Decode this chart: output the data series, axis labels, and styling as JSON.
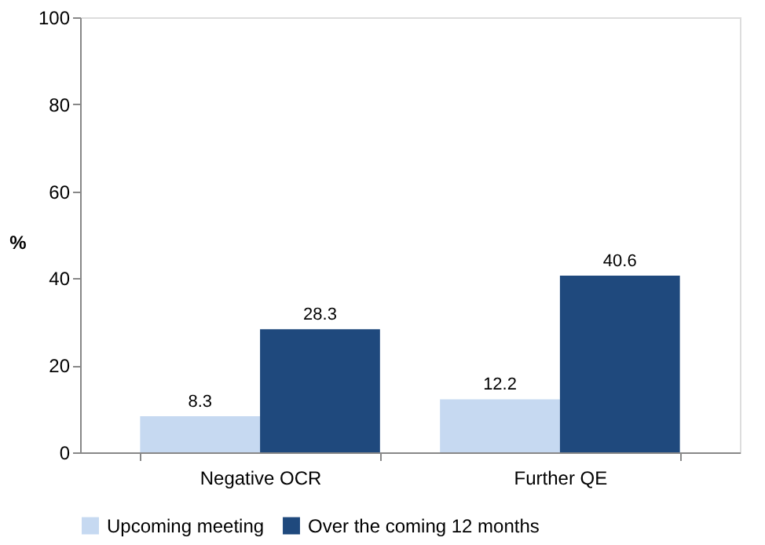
{
  "chart_data": {
    "type": "bar",
    "ylabel": "%",
    "categories": [
      "Negative OCR",
      "Further QE"
    ],
    "series": [
      {
        "name": "Upcoming meeting",
        "color": "#c6d9f1",
        "values": [
          8.3,
          12.2
        ]
      },
      {
        "name": "Over the coming 12 months",
        "color": "#1f497d",
        "values": [
          28.3,
          40.6
        ]
      }
    ],
    "ylim": [
      0,
      100
    ],
    "yticks": [
      0,
      20,
      40,
      60,
      80,
      100
    ],
    "data_labels": true,
    "legend": "bottom",
    "grid": false
  }
}
